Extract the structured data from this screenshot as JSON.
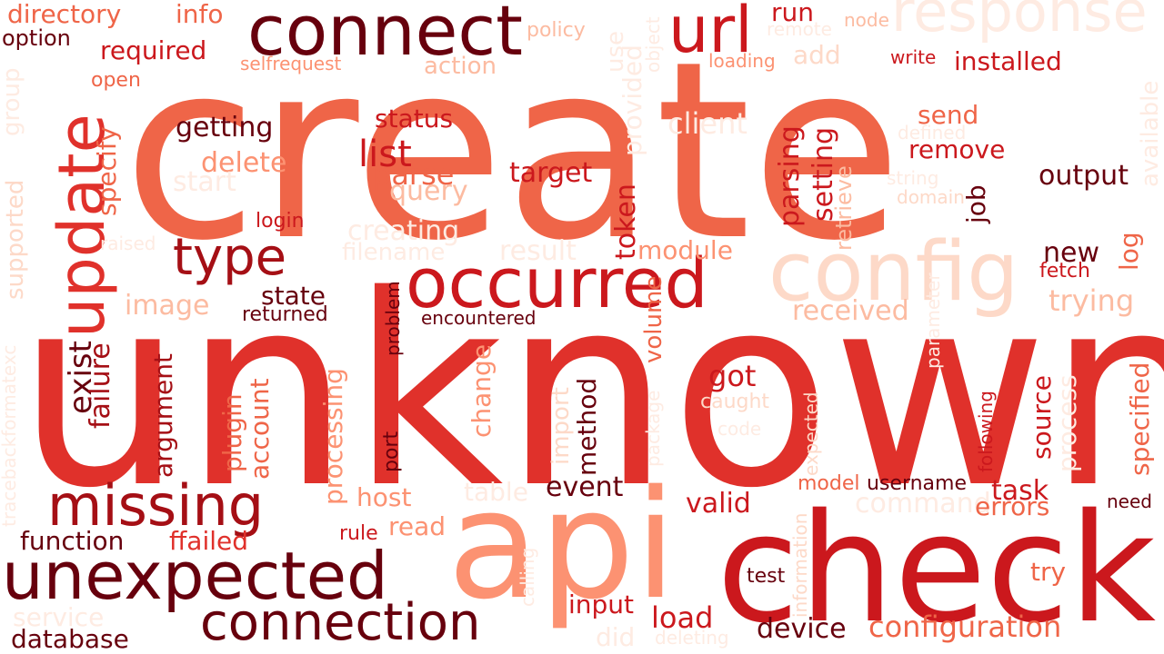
{
  "palette": {
    "dark": "#67000d",
    "red": "#a50f15",
    "crimson": "#cb181d",
    "scarlet": "#e0312b",
    "coral": "#ef6548",
    "salmon": "#fc9272",
    "peach": "#fcbba1",
    "blush": "#fdd9c8",
    "pale": "#feebe2"
  },
  "words": [
    {
      "text": "create",
      "color": "coral"
    },
    {
      "text": "unknown",
      "color": "scarlet"
    },
    {
      "text": "api",
      "color": "salmon"
    },
    {
      "text": "check",
      "color": "crimson"
    },
    {
      "text": "connect",
      "color": "dark"
    },
    {
      "text": "url",
      "color": "crimson"
    },
    {
      "text": "response",
      "color": "pale"
    },
    {
      "text": "update",
      "color": "scarlet"
    },
    {
      "text": "occurred",
      "color": "crimson"
    },
    {
      "text": "config",
      "color": "blush"
    },
    {
      "text": "missing",
      "color": "red"
    },
    {
      "text": "unexpected",
      "color": "dark"
    },
    {
      "text": "connection",
      "color": "dark"
    },
    {
      "text": "type",
      "color": "red"
    },
    {
      "text": "directory",
      "color": "coral"
    },
    {
      "text": "info",
      "color": "coral"
    },
    {
      "text": "option",
      "color": "dark"
    },
    {
      "text": "required",
      "color": "crimson"
    },
    {
      "text": "selfrequest",
      "color": "salmon"
    },
    {
      "text": "open",
      "color": "coral"
    },
    {
      "text": "group",
      "color": "pale"
    },
    {
      "text": "supported",
      "color": "blush"
    },
    {
      "text": "specify",
      "color": "coral"
    },
    {
      "text": "getting",
      "color": "dark"
    },
    {
      "text": "delete",
      "color": "salmon"
    },
    {
      "text": "start",
      "color": "pale"
    },
    {
      "text": "login",
      "color": "crimson"
    },
    {
      "text": "raised",
      "color": "pale"
    },
    {
      "text": "action",
      "color": "peach"
    },
    {
      "text": "status",
      "color": "crimson"
    },
    {
      "text": "list",
      "color": "crimson"
    },
    {
      "text": "parse",
      "color": "coral"
    },
    {
      "text": "query",
      "color": "peach"
    },
    {
      "text": "creating",
      "color": "pale"
    },
    {
      "text": "filename",
      "color": "pale"
    },
    {
      "text": "result",
      "color": "pale"
    },
    {
      "text": "target",
      "color": "crimson"
    },
    {
      "text": "policy",
      "color": "peach"
    },
    {
      "text": "use",
      "color": "pale"
    },
    {
      "text": "provided",
      "color": "pale"
    },
    {
      "text": "client",
      "color": "pale"
    },
    {
      "text": "token",
      "color": "crimson"
    },
    {
      "text": "module",
      "color": "salmon"
    },
    {
      "text": "run",
      "color": "crimson"
    },
    {
      "text": "remote",
      "color": "pale"
    },
    {
      "text": "object",
      "color": "pale"
    },
    {
      "text": "loading",
      "color": "salmon"
    },
    {
      "text": "add",
      "color": "blush"
    },
    {
      "text": "node",
      "color": "peach"
    },
    {
      "text": "write",
      "color": "crimson"
    },
    {
      "text": "installed",
      "color": "crimson"
    },
    {
      "text": "parsing",
      "color": "crimson"
    },
    {
      "text": "setting",
      "color": "crimson"
    },
    {
      "text": "retrieve",
      "color": "peach"
    },
    {
      "text": "send",
      "color": "coral"
    },
    {
      "text": "defined",
      "color": "pale"
    },
    {
      "text": "remove",
      "color": "crimson"
    },
    {
      "text": "string",
      "color": "pale"
    },
    {
      "text": "domain",
      "color": "blush"
    },
    {
      "text": "job",
      "color": "dark"
    },
    {
      "text": "output",
      "color": "dark"
    },
    {
      "text": "available",
      "color": "pale"
    },
    {
      "text": "new",
      "color": "dark"
    },
    {
      "text": "fetch",
      "color": "crimson"
    },
    {
      "text": "log",
      "color": "coral"
    },
    {
      "text": "trying",
      "color": "peach"
    },
    {
      "text": "state",
      "color": "dark"
    },
    {
      "text": "returned",
      "color": "dark"
    },
    {
      "text": "image",
      "color": "peach"
    },
    {
      "text": "exist",
      "color": "dark"
    },
    {
      "text": "failure",
      "color": "red"
    },
    {
      "text": "argument",
      "color": "red"
    },
    {
      "text": "plugin",
      "color": "coral"
    },
    {
      "text": "account",
      "color": "coral"
    },
    {
      "text": "processing",
      "color": "salmon"
    },
    {
      "text": "problem",
      "color": "dark"
    },
    {
      "text": "encountered",
      "color": "dark"
    },
    {
      "text": "change",
      "color": "salmon"
    },
    {
      "text": "port",
      "color": "dark"
    },
    {
      "text": "import",
      "color": "blush"
    },
    {
      "text": "method",
      "color": "dark"
    },
    {
      "text": "volume",
      "color": "coral"
    },
    {
      "text": "got",
      "color": "crimson"
    },
    {
      "text": "caught",
      "color": "blush"
    },
    {
      "text": "code",
      "color": "pale"
    },
    {
      "text": "package",
      "color": "pale"
    },
    {
      "text": "expected",
      "color": "blush"
    },
    {
      "text": "received",
      "color": "peach"
    },
    {
      "text": "parameter",
      "color": "pale"
    },
    {
      "text": "following",
      "color": "crimson"
    },
    {
      "text": "source",
      "color": "crimson"
    },
    {
      "text": "process",
      "color": "pale"
    },
    {
      "text": "specified",
      "color": "coral"
    },
    {
      "text": "tracebackformatexc",
      "color": "pale"
    },
    {
      "text": "host",
      "color": "salmon"
    },
    {
      "text": "table",
      "color": "pale"
    },
    {
      "text": "event",
      "color": "dark"
    },
    {
      "text": "valid",
      "color": "crimson"
    },
    {
      "text": "model",
      "color": "coral"
    },
    {
      "text": "username",
      "color": "dark"
    },
    {
      "text": "command",
      "color": "pale"
    },
    {
      "text": "task",
      "color": "crimson"
    },
    {
      "text": "errors",
      "color": "coral"
    },
    {
      "text": "need",
      "color": "dark"
    },
    {
      "text": "function",
      "color": "dark"
    },
    {
      "text": "ffailed",
      "color": "scarlet"
    },
    {
      "text": "rule",
      "color": "crimson"
    },
    {
      "text": "read",
      "color": "salmon"
    },
    {
      "text": "calling",
      "color": "pale"
    },
    {
      "text": "information",
      "color": "blush"
    },
    {
      "text": "test",
      "color": "dark"
    },
    {
      "text": "try",
      "color": "coral"
    },
    {
      "text": "service",
      "color": "pale"
    },
    {
      "text": "database",
      "color": "dark"
    },
    {
      "text": "input",
      "color": "crimson"
    },
    {
      "text": "did",
      "color": "pale"
    },
    {
      "text": "load",
      "color": "crimson"
    },
    {
      "text": "deleting",
      "color": "pale"
    },
    {
      "text": "device",
      "color": "dark"
    },
    {
      "text": "configuration",
      "color": "coral"
    }
  ]
}
